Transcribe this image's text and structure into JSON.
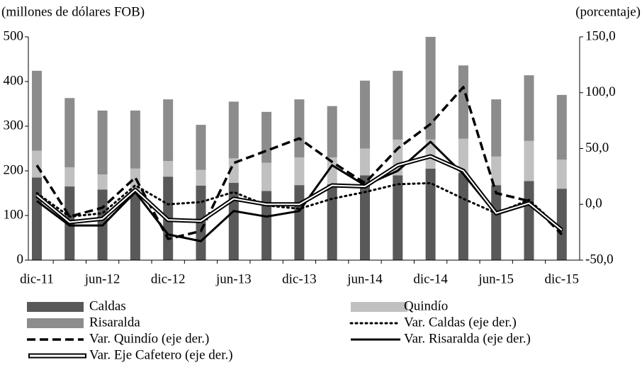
{
  "chart_data": {
    "type": "bar-line",
    "y_label": "(millones de dólares FOB)",
    "y2_label": "(porcentaje)",
    "categories": [
      "dic-11",
      null,
      "jun-12",
      null,
      "dic-12",
      null,
      "jun-13",
      null,
      "dic-13",
      null,
      "jun-14",
      null,
      "dic-14",
      null,
      "jun-15",
      null,
      "dic-15"
    ],
    "ylim": [
      0,
      500
    ],
    "yticks": [
      0,
      100,
      200,
      300,
      400,
      500
    ],
    "y2lim": [
      -50,
      150
    ],
    "y2ticks": [
      {
        "value": -50,
        "label": "-50,0"
      },
      {
        "value": 0,
        "label": "0,0"
      },
      {
        "value": 50,
        "label": "50,0"
      },
      {
        "value": 100,
        "label": "100,0"
      },
      {
        "value": 150,
        "label": "150,0"
      }
    ],
    "series": [
      {
        "name": "Caldas",
        "kind": "bar",
        "color": "#595959",
        "values": [
          185,
          165,
          158,
          155,
          187,
          167,
          173,
          155,
          168,
          170,
          190,
          190,
          205,
          195,
          168,
          177,
          160
        ]
      },
      {
        "name": "Quindío",
        "kind": "bar",
        "color": "#c0c0c0",
        "values": [
          60,
          43,
          34,
          50,
          35,
          35,
          55,
          63,
          62,
          60,
          60,
          80,
          65,
          77,
          64,
          90,
          65
        ]
      },
      {
        "name": "Risaralda",
        "kind": "bar",
        "color": "#8c8c8c",
        "values": [
          179,
          155,
          143,
          130,
          138,
          101,
          127,
          114,
          130,
          115,
          152,
          154,
          230,
          164,
          128,
          147,
          145
        ]
      },
      {
        "name": "Var. Caldas (eje der.)",
        "kind": "line",
        "style": "dotted",
        "color": "#000000",
        "axis": "y2",
        "values": [
          10,
          -11,
          -8,
          17,
          0,
          2,
          11,
          -1,
          -4,
          5,
          11,
          18,
          19,
          5,
          -8,
          4,
          -23
        ]
      },
      {
        "name": "Var. Quindío (eje der.)",
        "kind": "line",
        "style": "dashed",
        "color": "#000000",
        "axis": "y2",
        "values": [
          35,
          -11,
          -3,
          24,
          -31,
          -24,
          37,
          48,
          59,
          38,
          19,
          50,
          72,
          105,
          10,
          3,
          -27
        ]
      },
      {
        "name": "Var. Risaralda (eje der.)",
        "kind": "line",
        "style": "solid",
        "color": "#000000",
        "axis": "y2",
        "values": [
          3,
          -19,
          -19,
          11,
          -27,
          -33,
          -6,
          -11,
          -6,
          35,
          17,
          30,
          56,
          27,
          -9,
          0,
          -24
        ]
      },
      {
        "name": "Var. Eje Cafetero (eje der.)",
        "kind": "line",
        "style": "double",
        "color": "#000000",
        "axis": "y2",
        "values": [
          8,
          -16,
          -13,
          13,
          -14,
          -15,
          5,
          0,
          0,
          17,
          16,
          35,
          43,
          30,
          -8,
          1,
          -23
        ]
      }
    ]
  }
}
